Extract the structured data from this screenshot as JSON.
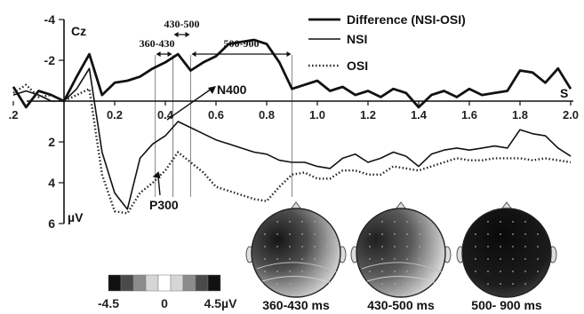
{
  "chart_data": {
    "type": "line",
    "channel": "Cz",
    "y_unit": "µV",
    "x_axis_end_label": "S",
    "y_inverted": true,
    "xlim": [
      -0.2,
      2.0
    ],
    "ylim": [
      -4,
      6
    ],
    "x_ticks": [
      -0.2,
      0.2,
      0.4,
      0.6,
      0.8,
      1.0,
      1.2,
      1.4,
      1.6,
      1.8,
      2.0
    ],
    "x_tick_labels": [
      ".2",
      "0.2",
      "0.4",
      "0.6",
      "0.8",
      "1.0",
      "1.2",
      "1.4",
      "1.6",
      "1.8",
      "2.0"
    ],
    "y_ticks": [
      -4,
      -2,
      2,
      4,
      6
    ],
    "y_tick_labels": [
      "-4",
      "-2",
      "2",
      "4",
      "6"
    ],
    "series": [
      {
        "name": "Difference (NSI-OSI)",
        "style": "thick-solid",
        "x": [
          -0.2,
          -0.15,
          -0.1,
          -0.05,
          0,
          0.05,
          0.1,
          0.15,
          0.2,
          0.25,
          0.3,
          0.35,
          0.4,
          0.45,
          0.5,
          0.55,
          0.6,
          0.65,
          0.7,
          0.75,
          0.8,
          0.85,
          0.9,
          0.95,
          1.0,
          1.05,
          1.1,
          1.15,
          1.2,
          1.25,
          1.3,
          1.35,
          1.4,
          1.45,
          1.5,
          1.55,
          1.6,
          1.65,
          1.7,
          1.75,
          1.8,
          1.85,
          1.9,
          1.95,
          2.0
        ],
        "y": [
          -0.7,
          0.3,
          -0.5,
          -0.3,
          0.0,
          -1.2,
          -2.3,
          -0.3,
          -0.9,
          -1.0,
          -1.2,
          -1.6,
          -1.9,
          -2.3,
          -1.5,
          -1.9,
          -2.2,
          -2.8,
          -2.9,
          -3.0,
          -2.8,
          -1.9,
          -0.6,
          -0.8,
          -1.0,
          -0.5,
          -0.7,
          -0.3,
          -0.5,
          -0.2,
          -0.6,
          -0.4,
          0.3,
          -0.3,
          -0.5,
          -0.2,
          -0.6,
          -0.3,
          -0.4,
          -0.5,
          -1.5,
          -1.4,
          -0.9,
          -1.6,
          -0.6
        ]
      },
      {
        "name": "NSI",
        "style": "solid",
        "x": [
          -0.2,
          -0.15,
          -0.1,
          -0.05,
          0,
          0.05,
          0.1,
          0.15,
          0.2,
          0.25,
          0.3,
          0.35,
          0.4,
          0.45,
          0.5,
          0.55,
          0.6,
          0.65,
          0.7,
          0.75,
          0.8,
          0.85,
          0.9,
          0.95,
          1.0,
          1.05,
          1.1,
          1.15,
          1.2,
          1.25,
          1.3,
          1.35,
          1.4,
          1.45,
          1.5,
          1.55,
          1.6,
          1.65,
          1.7,
          1.75,
          1.8,
          1.85,
          1.9,
          1.95,
          2.0
        ],
        "y": [
          -0.3,
          -0.5,
          -0.3,
          0.0,
          0.0,
          -0.6,
          -1.6,
          2.5,
          4.5,
          5.3,
          2.8,
          2.1,
          1.7,
          1.0,
          1.3,
          1.6,
          1.9,
          2.1,
          2.3,
          2.5,
          2.6,
          2.9,
          3.0,
          3.0,
          3.2,
          3.3,
          2.8,
          2.6,
          3.0,
          2.8,
          2.5,
          2.7,
          3.2,
          2.6,
          2.4,
          2.3,
          2.4,
          2.3,
          2.2,
          2.3,
          1.4,
          1.6,
          1.7,
          2.3,
          2.7
        ]
      },
      {
        "name": "OSI",
        "style": "dotted",
        "x": [
          -0.2,
          -0.15,
          -0.1,
          -0.05,
          0,
          0.05,
          0.1,
          0.15,
          0.2,
          0.25,
          0.3,
          0.35,
          0.4,
          0.45,
          0.5,
          0.55,
          0.6,
          0.65,
          0.7,
          0.75,
          0.8,
          0.85,
          0.9,
          0.95,
          1.0,
          1.05,
          1.1,
          1.15,
          1.2,
          1.25,
          1.3,
          1.35,
          1.4,
          1.45,
          1.5,
          1.55,
          1.6,
          1.65,
          1.7,
          1.75,
          1.8,
          1.85,
          1.9,
          1.95,
          2.0
        ],
        "y": [
          -0.4,
          -0.8,
          -0.2,
          -0.3,
          0.0,
          -0.3,
          -0.6,
          3.6,
          5.4,
          5.5,
          4.5,
          4.0,
          3.4,
          2.5,
          3.0,
          3.5,
          4.2,
          4.4,
          4.6,
          4.8,
          4.9,
          4.2,
          3.6,
          3.5,
          3.8,
          3.8,
          3.4,
          3.4,
          3.6,
          3.6,
          3.2,
          3.3,
          3.4,
          3.2,
          3.0,
          2.8,
          2.9,
          2.9,
          2.8,
          2.8,
          2.8,
          2.9,
          2.8,
          2.9,
          3.0
        ]
      }
    ],
    "windows": [
      {
        "label": "360-430",
        "start": 0.36,
        "end": 0.43
      },
      {
        "label": "430-500",
        "start": 0.43,
        "end": 0.5
      },
      {
        "label": "500-900",
        "start": 0.5,
        "end": 0.9
      }
    ],
    "annotations": [
      {
        "label": "N400",
        "x": 0.4,
        "y": 1.0
      },
      {
        "label": "P300",
        "x": 0.36,
        "y": 3.4
      }
    ],
    "legend_placement": "top-right",
    "grid": false
  },
  "colorbar": {
    "min_label": "-4.5",
    "mid_label": "0",
    "max_label": "4.5µV",
    "shades": [
      "#111111",
      "#4a4a4a",
      "#8c8c8c",
      "#d6d6d6",
      "#ffffff",
      "#d6d6d6",
      "#8c8c8c",
      "#4a4a4a",
      "#111111"
    ]
  },
  "topomaps": [
    {
      "label": "360-430 ms"
    },
    {
      "label": "430-500 ms"
    },
    {
      "label": "500- 900 ms"
    }
  ]
}
